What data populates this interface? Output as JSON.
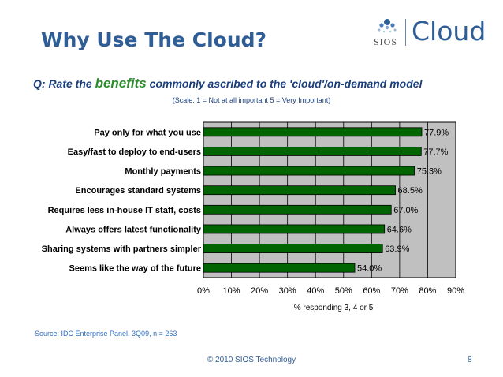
{
  "slide": {
    "title": "Why Use The Cloud?",
    "logo_left": "SIOS",
    "logo_right": "Cloud",
    "question_prefix": "Q: Rate the ",
    "question_emphasis": "benefits",
    "question_suffix": " commonly ascribed to the 'cloud'/on-demand model",
    "scale_note": "(Scale: 1 = Not at all important  5 = Very Important)",
    "source": "Source: IDC Enterprise Panel, 3Q09, n = 263",
    "copyright": "© 2010 SIOS Technology",
    "page_number": "8"
  },
  "chart_data": {
    "type": "bar",
    "orientation": "horizontal",
    "categories": [
      "Pay only for what you use",
      "Easy/fast to deploy to end-users",
      "Monthly payments",
      "Encourages standard systems",
      "Requires less in-house IT staff, costs",
      "Always offers latest functionality",
      "Sharing systems with partners simpler",
      "Seems like the way of the future"
    ],
    "values": [
      77.9,
      77.7,
      75.3,
      68.5,
      67.0,
      64.6,
      63.9,
      54.0
    ],
    "data_labels": [
      "77.9%",
      "77.7%",
      "75.3%",
      "68.5%",
      "67.0%",
      "64.6%",
      "63.9%",
      "54.0%"
    ],
    "xlabel": "% responding 3, 4 or 5",
    "xlim": [
      0,
      90
    ],
    "xticks": [
      "0%",
      "10%",
      "20%",
      "30%",
      "40%",
      "50%",
      "60%",
      "70%",
      "80%",
      "90%"
    ],
    "grid": true,
    "bar_color": "#006400",
    "plot_background": "#c0c0c0"
  }
}
